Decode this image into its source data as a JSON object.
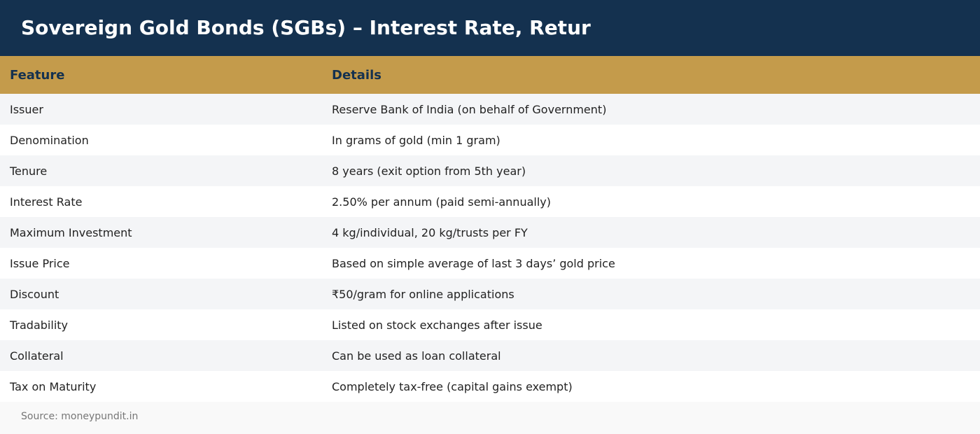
{
  "header": {
    "title": "Sovereign Gold Bonds (SGBs) – Interest Rate, Retur"
  },
  "table": {
    "columns": [
      "Feature",
      "Details"
    ],
    "rows": [
      [
        "Issuer",
        "Reserve Bank of India (on behalf of Government)"
      ],
      [
        "Denomination",
        "In grams of gold (min 1 gram)"
      ],
      [
        "Tenure",
        "8 years (exit option from 5th year)"
      ],
      [
        "Interest Rate",
        "2.50% per annum (paid semi-annually)"
      ],
      [
        "Maximum Investment",
        "4 kg/individual, 20 kg/trusts per FY"
      ],
      [
        "Issue Price",
        "Based on simple average of last 3 days’ gold price"
      ],
      [
        "Discount",
        "₹50/gram for online applications"
      ],
      [
        "Tradability",
        "Listed on stock exchanges after issue"
      ],
      [
        "Collateral",
        "Can be used as loan collateral"
      ],
      [
        "Tax on Maturity",
        "Completely tax-free (capital gains exempt)"
      ]
    ]
  },
  "footer": {
    "source": "Source: moneypundit.in"
  },
  "colors": {
    "banner": "#14314f",
    "header_row": "#c49b4b",
    "row_alt": "#f4f5f7",
    "row": "#ffffff"
  }
}
